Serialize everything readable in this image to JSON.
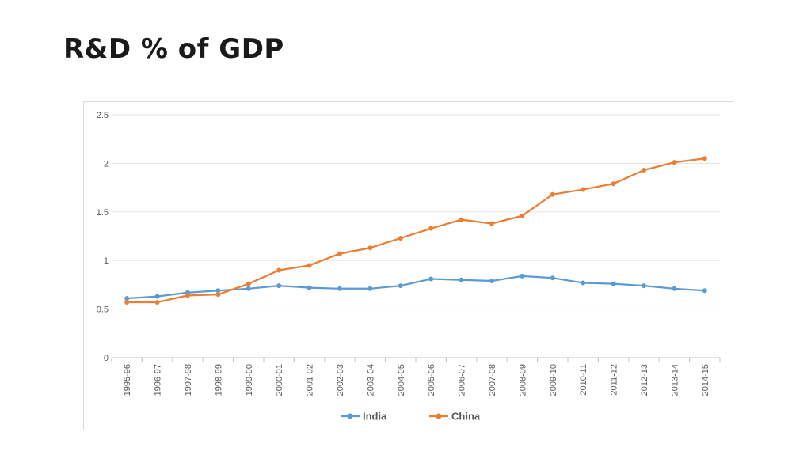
{
  "page": {
    "title": "R&D % of GDP"
  },
  "chart_data": {
    "type": "line",
    "title": "",
    "xlabel": "",
    "ylabel": "",
    "ylim": [
      0,
      2.5
    ],
    "yticks": [
      0,
      0.5,
      1,
      1.5,
      2,
      2.5
    ],
    "ytick_labels": [
      "0",
      "0.5",
      "1",
      "1.5",
      "2",
      "2.5"
    ],
    "grid": true,
    "legend_position": "bottom",
    "categories": [
      "1995-96",
      "1996-97",
      "1997-98",
      "1998-99",
      "1999-00",
      "2000-01",
      "2001-02",
      "2002-03",
      "2003-04",
      "2004-05",
      "2005-06",
      "2006-07",
      "2007-08",
      "2008-09",
      "2009-10",
      "2010-11",
      "2011-12",
      "2012-13",
      "2013-14",
      "2014-15"
    ],
    "series": [
      {
        "name": "India",
        "color": "#5b9bd5",
        "values": [
          0.61,
          0.63,
          0.67,
          0.69,
          0.71,
          0.74,
          0.72,
          0.71,
          0.71,
          0.74,
          0.81,
          0.8,
          0.79,
          0.84,
          0.82,
          0.77,
          0.76,
          0.74,
          0.71,
          0.69
        ]
      },
      {
        "name": "China",
        "color": "#ed7d31",
        "values": [
          0.57,
          0.57,
          0.64,
          0.65,
          0.76,
          0.9,
          0.95,
          1.07,
          1.13,
          1.23,
          1.33,
          1.42,
          1.38,
          1.46,
          1.68,
          1.73,
          1.79,
          1.93,
          2.01,
          2.05
        ]
      }
    ]
  }
}
